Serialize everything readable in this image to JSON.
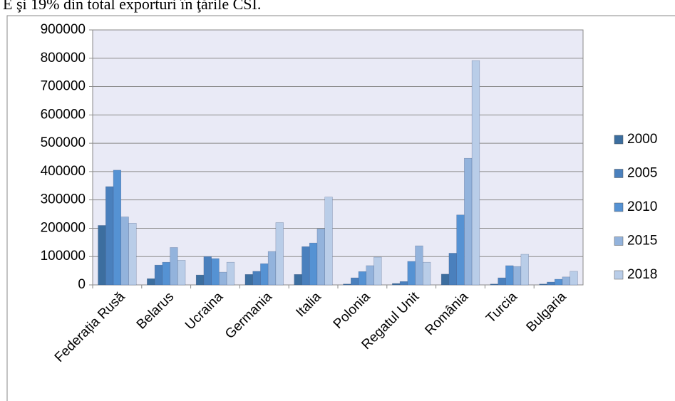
{
  "document_text": "E şi 19% din total exporturi în ţările CSI.",
  "chart_data": {
    "type": "bar",
    "categories": [
      "Federația Rusă",
      "Belarus",
      "Ucraina",
      "Germania",
      "Italia",
      "Polonia",
      "Regatul Unit",
      "România",
      "Turcia",
      "Bulgaria"
    ],
    "series": [
      {
        "name": "2000",
        "color": "#3c6e9f",
        "values": [
          210000,
          22000,
          35000,
          37000,
          37000,
          3000,
          5000,
          38000,
          3000,
          3000
        ]
      },
      {
        "name": "2005",
        "color": "#4a80bd",
        "values": [
          347000,
          70000,
          100000,
          48000,
          135000,
          25000,
          12000,
          112000,
          25000,
          10000
        ]
      },
      {
        "name": "2010",
        "color": "#5592d3",
        "values": [
          405000,
          80000,
          93000,
          75000,
          148000,
          47000,
          83000,
          247000,
          68000,
          20000
        ]
      },
      {
        "name": "2015",
        "color": "#93b3dc",
        "values": [
          240000,
          132000,
          45000,
          118000,
          198000,
          68000,
          138000,
          447000,
          65000,
          28000
        ]
      },
      {
        "name": "2018",
        "color": "#b9cde8",
        "values": [
          218000,
          87000,
          80000,
          220000,
          310000,
          98000,
          80000,
          792000,
          108000,
          48000
        ]
      }
    ],
    "ylim": [
      0,
      900000
    ],
    "yticks": [
      0,
      100000,
      200000,
      300000,
      400000,
      500000,
      600000,
      700000,
      800000,
      900000
    ],
    "grid": true,
    "legend": "right"
  }
}
